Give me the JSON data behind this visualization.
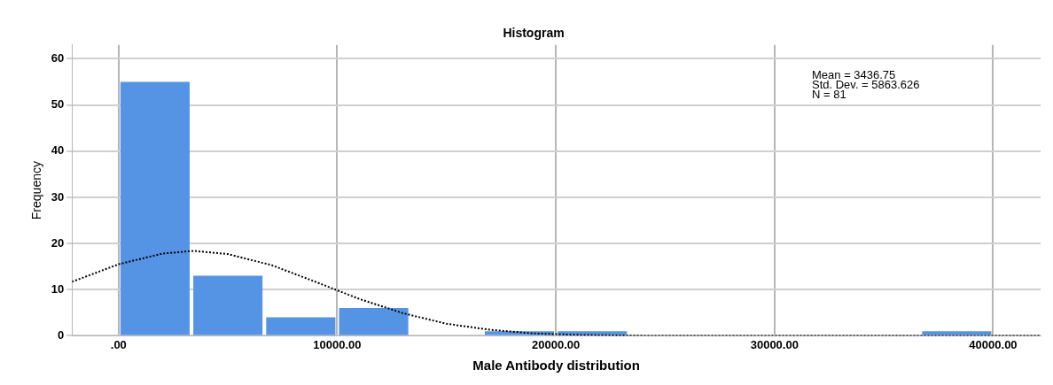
{
  "chart_data": {
    "type": "histogram",
    "title": "Histogram",
    "xlabel": "Male Antibody distribution",
    "ylabel": "Frequency",
    "bins": [
      0,
      3333.33,
      6666.67,
      10000,
      13333.33,
      16666.67,
      20000,
      23333.33,
      26666.67,
      30000,
      33333.33,
      36666.67,
      40000
    ],
    "values": [
      55,
      13,
      4,
      6,
      0,
      1,
      1,
      0,
      0,
      0,
      0,
      1
    ],
    "color": "#5594e4",
    "series": [
      {
        "type": "line",
        "color": "#000000",
        "line_style": "dotted",
        "marker": "none",
        "x": [
          -2130,
          0,
          2000,
          3437,
          5000,
          7000,
          9000,
          11000,
          13000,
          15000,
          17000,
          19000,
          21000,
          24000,
          28000,
          42170
        ],
        "values": [
          11.7,
          15.5,
          17.8,
          18.4,
          17.7,
          15.3,
          11.7,
          8,
          4.9,
          2.6,
          1.3,
          0.5,
          0.2,
          0,
          0,
          0
        ]
      }
    ],
    "xlim": [
      -2130,
      42170
    ],
    "xticks": [
      {
        "value": 0,
        "label": ".00"
      },
      {
        "value": 10000,
        "label": "10000.00"
      },
      {
        "value": 20000,
        "label": "20000.00"
      },
      {
        "value": 30000,
        "label": "30000.00"
      },
      {
        "value": 40000,
        "label": "40000.00"
      }
    ],
    "ylim": [
      0,
      63
    ],
    "yticks": [
      0,
      10,
      20,
      30,
      40,
      50,
      60
    ],
    "grid": true,
    "legend": false,
    "annotations": [
      "Mean = 3436.75",
      "Std. Dev. = 5863.626",
      "N = 81"
    ]
  }
}
